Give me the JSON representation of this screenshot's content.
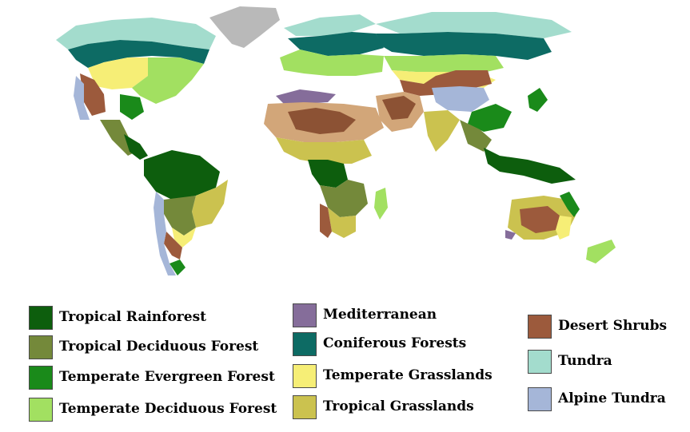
{
  "legend": [
    {
      "label": "Tropical Rainforest",
      "color": "#0d5e0d"
    },
    {
      "label": "Tropical Deciduous Forest",
      "color": "#74893a"
    },
    {
      "label": "Temperate Evergreen Forest",
      "color": "#1a8a1a"
    },
    {
      "label": "Temperate Deciduous Forest",
      "color": "#a2e061"
    },
    {
      "label": "Mediterranean",
      "color": "#856d9a"
    },
    {
      "label": "Coniferous Forests",
      "color": "#0d6b64"
    },
    {
      "label": "Temperate Grasslands",
      "color": "#f6ee76"
    },
    {
      "label": "Tropical Grasslands",
      "color": "#cbc24f"
    },
    {
      "label": "Desert Shrubs",
      "color": "#9c5a3c"
    },
    {
      "label": "Tundra",
      "color": "#a3dccd"
    },
    {
      "label": "Alpine Tundra",
      "color": "#a5b6d8"
    }
  ],
  "colors": {
    "ice": "#b9b9b9",
    "desert_light": "#d2a679",
    "desert_dark": "#8c5234"
  }
}
